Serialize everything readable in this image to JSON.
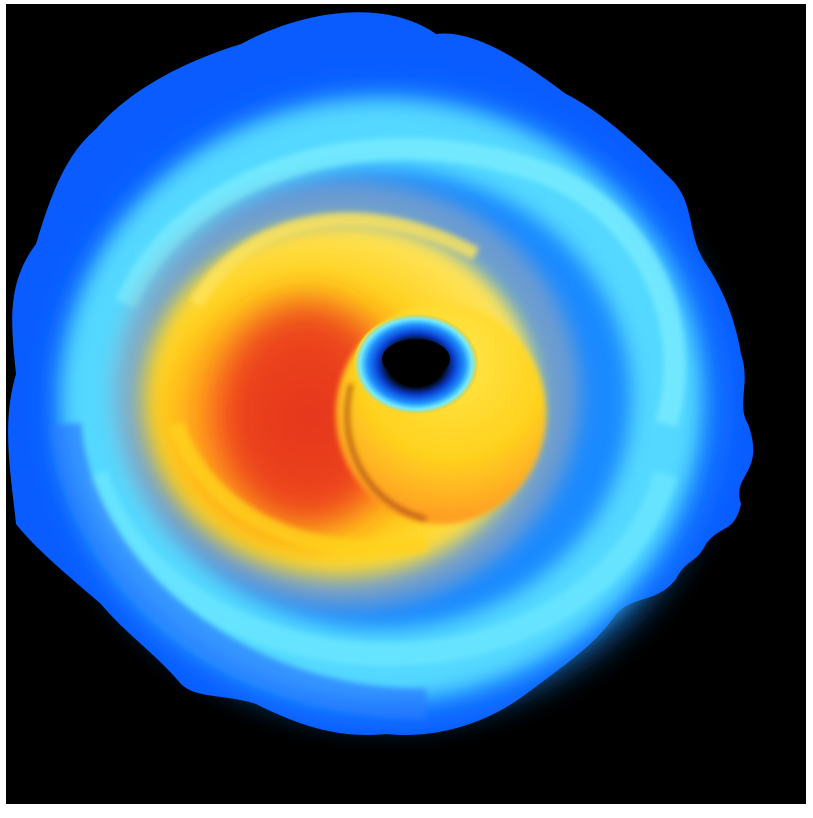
{
  "image": {
    "subject": "",
    "colors": {
      "background": "#000000",
      "frame": "#ffffff",
      "outer_blue": "#0a5cff",
      "mid_blue": "#1e8fff",
      "cyan": "#5fe6ff",
      "yellow": "#ffd21f",
      "orange": "#ff7a1a",
      "red_orange": "#e8381a",
      "hole": "#000000"
    }
  }
}
